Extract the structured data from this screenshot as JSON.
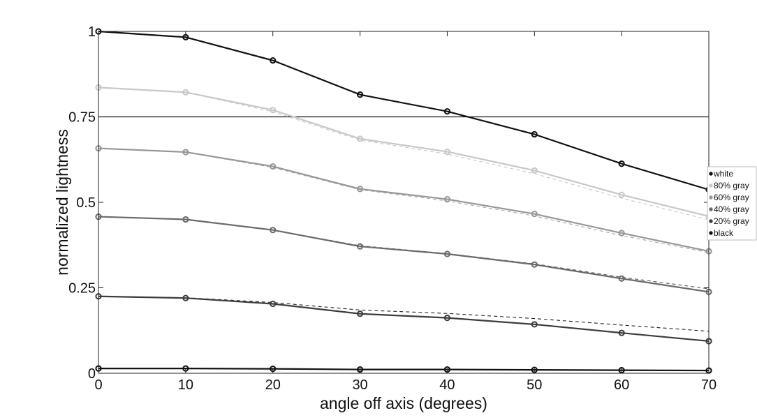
{
  "chart_data": {
    "type": "line",
    "title": "",
    "xlabel": "angle off axis (degrees)",
    "ylabel": "normalized lightness",
    "xlim": [
      0,
      70
    ],
    "ylim": [
      0,
      1
    ],
    "x": [
      0,
      10,
      20,
      30,
      40,
      50,
      60,
      70
    ],
    "x_ticks": [
      0,
      10,
      20,
      30,
      40,
      50,
      60,
      70
    ],
    "x_tick_labels": [
      "0",
      "10",
      "20",
      "30",
      "40",
      "50",
      "60",
      "70"
    ],
    "y_ticks": [
      0,
      0.25,
      0.5,
      0.75,
      1
    ],
    "y_tick_labels": [
      "0",
      "0.25",
      "0.5",
      "0.75",
      "1"
    ],
    "grid": false,
    "legend_position": "right",
    "reference_line": {
      "y": 0.75,
      "color": "#111111"
    },
    "series": [
      {
        "name": "white",
        "color": "#111111",
        "values": [
          1.0,
          0.983,
          0.915,
          0.815,
          0.766,
          0.699,
          0.613,
          0.537
        ]
      },
      {
        "name": "80% gray",
        "color": "#c8c8c8",
        "values": [
          0.836,
          0.822,
          0.77,
          0.686,
          0.648,
          0.593,
          0.522,
          0.459
        ]
      },
      {
        "name": "60% gray",
        "color": "#979797",
        "values": [
          0.658,
          0.647,
          0.605,
          0.539,
          0.509,
          0.466,
          0.41,
          0.357
        ]
      },
      {
        "name": "40% gray",
        "color": "#6b6b6b",
        "values": [
          0.458,
          0.45,
          0.419,
          0.371,
          0.349,
          0.318,
          0.277,
          0.238
        ]
      },
      {
        "name": "20% gray",
        "color": "#3c3c3c",
        "values": [
          0.225,
          0.22,
          0.203,
          0.174,
          0.162,
          0.143,
          0.118,
          0.094
        ]
      },
      {
        "name": "black",
        "color": "#111111",
        "values": [
          0.014,
          0.014,
          0.013,
          0.011,
          0.011,
          0.01,
          0.009,
          0.008
        ]
      }
    ],
    "reference_series": [
      {
        "base": "80% gray",
        "color": "#c8c8c8",
        "values": [
          0.836,
          0.822,
          0.765,
          0.682,
          0.641,
          0.584,
          0.512,
          0.449
        ]
      },
      {
        "base": "60% gray",
        "color": "#a8a8a8",
        "values": [
          0.658,
          0.647,
          0.602,
          0.537,
          0.504,
          0.46,
          0.403,
          0.353
        ]
      },
      {
        "base": "40% gray",
        "color": "#555555",
        "values": [
          0.458,
          0.45,
          0.419,
          0.373,
          0.35,
          0.32,
          0.281,
          0.247
        ]
      },
      {
        "base": "20% gray",
        "color": "#222222",
        "values": [
          0.225,
          0.221,
          0.207,
          0.185,
          0.175,
          0.16,
          0.141,
          0.123
        ]
      }
    ]
  }
}
